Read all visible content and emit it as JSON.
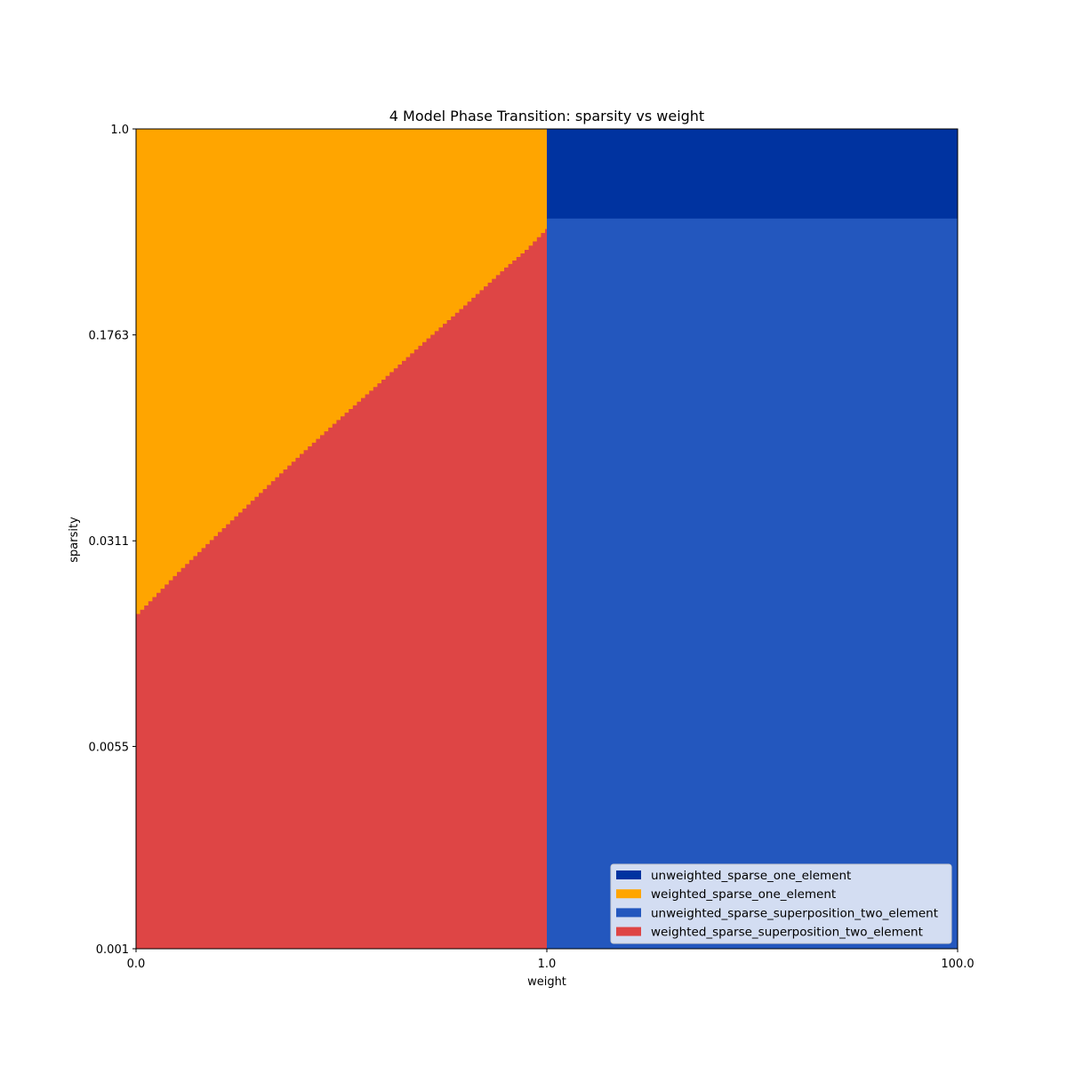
{
  "chart_data": {
    "type": "heatmap",
    "title": "4 Model Phase Transition: sparsity vs weight",
    "xlabel": "weight",
    "ylabel": "sparsity",
    "x_scale": "log",
    "y_scale": "log",
    "xlim": [
      0.01,
      100.0
    ],
    "ylim": [
      0.001,
      1.0
    ],
    "x_ticks": [
      {
        "value": 0.01,
        "label": "0.0"
      },
      {
        "value": 1.0,
        "label": "1.0"
      },
      {
        "value": 100.0,
        "label": "100.0"
      }
    ],
    "y_ticks": [
      {
        "value": 1.0,
        "label": "1.0"
      },
      {
        "value": 0.1763,
        "label": "0.1763"
      },
      {
        "value": 0.0311,
        "label": "0.0311"
      },
      {
        "value": 0.0055,
        "label": "0.0055"
      },
      {
        "value": 0.001,
        "label": "0.001"
      }
    ],
    "grid": false,
    "legend_position": "lower-right",
    "phases": [
      {
        "name": "unweighted_sparse_one_element",
        "color": "#0033a0"
      },
      {
        "name": "weighted_sparse_one_element",
        "color": "#ffa500"
      },
      {
        "name": "unweighted_sparse_superposition_two_element",
        "color": "#2357be"
      },
      {
        "name": "weighted_sparse_superposition_two_element",
        "color": "#de4545"
      }
    ],
    "regions": {
      "weight_split": 1.0,
      "unweighted_one_element_min_sparsity": 0.47,
      "weighted_boundary": [
        {
          "weight": 0.01,
          "sparsity": 0.0165
        },
        {
          "weight": 0.0158,
          "sparsity": 0.0235
        },
        {
          "weight": 0.0251,
          "sparsity": 0.033
        },
        {
          "weight": 0.0398,
          "sparsity": 0.046
        },
        {
          "weight": 0.0631,
          "sparsity": 0.064
        },
        {
          "weight": 0.1,
          "sparsity": 0.088
        },
        {
          "weight": 0.1585,
          "sparsity": 0.12
        },
        {
          "weight": 0.2512,
          "sparsity": 0.165
        },
        {
          "weight": 0.3981,
          "sparsity": 0.225
        },
        {
          "weight": 0.631,
          "sparsity": 0.31
        },
        {
          "weight": 0.7943,
          "sparsity": 0.36
        },
        {
          "weight": 1.0,
          "sparsity": 0.43
        }
      ]
    }
  }
}
